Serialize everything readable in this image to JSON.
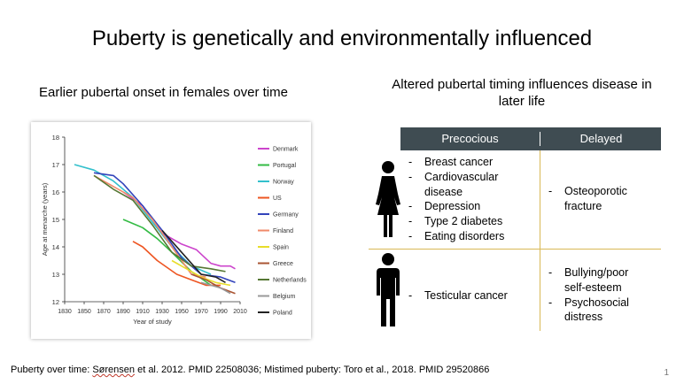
{
  "title": "Puberty is genetically and environmentally influenced",
  "left_subtitle": "Earlier pubertal onset in females over time",
  "right_subtitle": "Altered pubertal timing influences disease in later life",
  "table": {
    "headers": [
      "Precocious",
      "Delayed"
    ],
    "female": {
      "precocious": [
        "Breast cancer",
        "Cardiovascular disease",
        "Depression",
        "Type 2 diabetes",
        "Eating disorders"
      ],
      "delayed": [
        "Osteoporotic fracture"
      ]
    },
    "male": {
      "precocious": [
        "Testicular cancer"
      ],
      "delayed": [
        "Bullying/poor self-esteem",
        "Psychosocial distress"
      ]
    }
  },
  "footer": {
    "pre": "Puberty over time: ",
    "underlined": "Sørensen",
    "post": " et al. 2012. PMID 22508036; Mistimed puberty: Toro et al., 2018. PMID 29520866"
  },
  "page_number": "1",
  "icons": {
    "female": "female-figure-icon",
    "male": "male-figure-icon"
  },
  "chart_data": {
    "type": "line",
    "xlabel": "Year of study",
    "ylabel": "Age at menarche (years)",
    "xlim": [
      1830,
      2010
    ],
    "ylim": [
      12,
      18
    ],
    "xticks": [
      1830,
      1850,
      1870,
      1890,
      1910,
      1930,
      1950,
      1970,
      1990,
      2010
    ],
    "yticks": [
      12,
      13,
      14,
      15,
      16,
      17,
      18
    ],
    "legend_position": "right",
    "series": [
      {
        "name": "Denmark",
        "color": "#cc44cc",
        "x": [
          1890,
          1910,
          1930,
          1950,
          1965,
          1980,
          1990,
          2000,
          2005
        ],
        "y": [
          16.0,
          15.5,
          14.5,
          14.1,
          13.9,
          13.4,
          13.3,
          13.3,
          13.2
        ]
      },
      {
        "name": "Portugal",
        "color": "#33bb44",
        "x": [
          1890,
          1910,
          1925,
          1940,
          1960,
          1980
        ],
        "y": [
          15.0,
          14.7,
          14.3,
          13.8,
          13.1,
          12.6
        ]
      },
      {
        "name": "Norway",
        "color": "#33c0cc",
        "x": [
          1840,
          1860,
          1880,
          1900,
          1920,
          1940,
          1960,
          1980
        ],
        "y": [
          17.0,
          16.8,
          16.4,
          15.8,
          14.9,
          14.0,
          13.3,
          13.0
        ]
      },
      {
        "name": "US",
        "color": "#ee5522",
        "x": [
          1900,
          1910,
          1925,
          1945,
          1960,
          1975,
          1990
        ],
        "y": [
          14.2,
          14.0,
          13.5,
          13.0,
          12.8,
          12.6,
          12.6
        ]
      },
      {
        "name": "Germany",
        "color": "#3344bb",
        "x": [
          1860,
          1880,
          1890,
          1910,
          1930,
          1950,
          1970,
          1990,
          2005
        ],
        "y": [
          16.7,
          16.6,
          16.3,
          15.5,
          14.6,
          13.6,
          13.0,
          12.9,
          12.7
        ]
      },
      {
        "name": "Finland",
        "color": "#f08a6a",
        "x": [
          1860,
          1880,
          1900,
          1920,
          1940,
          1960,
          1975
        ],
        "y": [
          16.6,
          16.2,
          15.8,
          15.0,
          14.0,
          13.0,
          12.9
        ]
      },
      {
        "name": "Spain",
        "color": "#e8dd2a",
        "x": [
          1940,
          1955,
          1970,
          1985,
          2000
        ],
        "y": [
          13.5,
          13.2,
          12.9,
          12.7,
          12.6
        ]
      },
      {
        "name": "Greece",
        "color": "#aa5533",
        "x": [
          1960,
          1975,
          1990,
          2005
        ],
        "y": [
          13.0,
          12.8,
          12.5,
          12.3
        ]
      },
      {
        "name": "Netherlands",
        "color": "#557733",
        "x": [
          1860,
          1880,
          1900,
          1920,
          1940,
          1960,
          1980,
          1995
        ],
        "y": [
          16.6,
          16.1,
          15.7,
          14.8,
          13.8,
          13.3,
          13.2,
          13.1
        ]
      },
      {
        "name": "Belgium",
        "color": "#999999",
        "x": [
          1970,
          1980,
          1990,
          2000
        ],
        "y": [
          12.7,
          12.6,
          12.5,
          12.3
        ]
      },
      {
        "name": "Poland",
        "color": "#222222",
        "x": [
          1930,
          1950,
          1970,
          1985,
          1995
        ],
        "y": [
          14.6,
          13.8,
          13.0,
          12.9,
          12.7
        ]
      }
    ]
  }
}
